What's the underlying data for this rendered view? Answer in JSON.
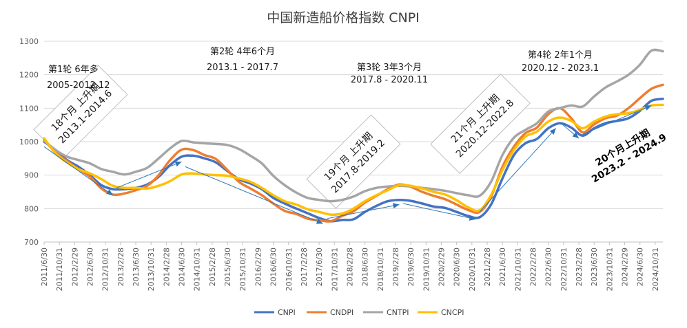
{
  "chart_data": {
    "type": "line",
    "title": "中国新造船价格指数 CNPI",
    "ylim": [
      700,
      1300
    ],
    "yticks": [
      700,
      800,
      900,
      1000,
      1100,
      1200,
      1300
    ],
    "grid": true,
    "legend_position": "bottom",
    "x_tick_labels": [
      "2011/6/30",
      "2011/10/31",
      "2012/2/29",
      "2012/6/30",
      "2012/10/31",
      "2013/2/28",
      "2013/6/30",
      "2013/10/31",
      "2014/2/28",
      "2014/6/30",
      "2014/10/31",
      "2015/2/28",
      "2015/6/30",
      "2015/10/31",
      "2016/2/29",
      "2016/6/30",
      "2016/10/31",
      "2017/2/28",
      "2017/6/30",
      "2017/10/31",
      "2018/2/28",
      "2018/6/30",
      "2018/10/31",
      "2019/2/28",
      "2019/6/30",
      "2019/10/31",
      "2020/2/29",
      "2020/6/30",
      "2020/10/31",
      "2021/2/28",
      "2021/6/30",
      "2021/10/31",
      "2022/2/28",
      "2022/6/30",
      "2022/10/31",
      "2023/2/28",
      "2023/6/30",
      "2023/10/31",
      "2024/2/29",
      "2024/6/30",
      "2024/10/31"
    ],
    "x_start": "2011-06",
    "x_end": "2024-12",
    "series": [
      {
        "name": "CNPI",
        "color": "#4472C4",
        "points": [
          [
            "2011-06",
            1000
          ],
          [
            "2011-09",
            975
          ],
          [
            "2011-12",
            945
          ],
          [
            "2012-03",
            925
          ],
          [
            "2012-06",
            900
          ],
          [
            "2012-09",
            870
          ],
          [
            "2012-12",
            858
          ],
          [
            "2013-03",
            858
          ],
          [
            "2013-06",
            862
          ],
          [
            "2013-09",
            872
          ],
          [
            "2013-12",
            895
          ],
          [
            "2014-03",
            930
          ],
          [
            "2014-06",
            955
          ],
          [
            "2014-09",
            958
          ],
          [
            "2014-12",
            950
          ],
          [
            "2015-03",
            938
          ],
          [
            "2015-06",
            912
          ],
          [
            "2015-09",
            888
          ],
          [
            "2015-12",
            875
          ],
          [
            "2016-03",
            858
          ],
          [
            "2016-06",
            832
          ],
          [
            "2016-09",
            815
          ],
          [
            "2016-12",
            800
          ],
          [
            "2017-03",
            786
          ],
          [
            "2017-06",
            772
          ],
          [
            "2017-09",
            762
          ],
          [
            "2017-12",
            766
          ],
          [
            "2018-03",
            768
          ],
          [
            "2018-06",
            790
          ],
          [
            "2018-09",
            808
          ],
          [
            "2018-12",
            822
          ],
          [
            "2019-03",
            826
          ],
          [
            "2019-06",
            823
          ],
          [
            "2019-09",
            815
          ],
          [
            "2019-12",
            806
          ],
          [
            "2020-03",
            802
          ],
          [
            "2020-06",
            790
          ],
          [
            "2020-09",
            778
          ],
          [
            "2020-12",
            774
          ],
          [
            "2021-03",
            812
          ],
          [
            "2021-06",
            890
          ],
          [
            "2021-09",
            960
          ],
          [
            "2021-12",
            995
          ],
          [
            "2022-03",
            1008
          ],
          [
            "2022-06",
            1040
          ],
          [
            "2022-09",
            1055
          ],
          [
            "2022-12",
            1042
          ],
          [
            "2023-03",
            1018
          ],
          [
            "2023-06",
            1040
          ],
          [
            "2023-09",
            1055
          ],
          [
            "2023-12",
            1062
          ],
          [
            "2024-03",
            1070
          ],
          [
            "2024-06",
            1092
          ],
          [
            "2024-09",
            1122
          ],
          [
            "2024-12",
            1128
          ]
        ]
      },
      {
        "name": "CNDPI",
        "color": "#ED7D31",
        "points": [
          [
            "2011-06",
            1005
          ],
          [
            "2011-09",
            968
          ],
          [
            "2011-12",
            942
          ],
          [
            "2012-03",
            918
          ],
          [
            "2012-06",
            895
          ],
          [
            "2012-09",
            860
          ],
          [
            "2012-12",
            842
          ],
          [
            "2013-03",
            845
          ],
          [
            "2013-06",
            855
          ],
          [
            "2013-09",
            868
          ],
          [
            "2013-12",
            900
          ],
          [
            "2014-03",
            945
          ],
          [
            "2014-06",
            976
          ],
          [
            "2014-09",
            975
          ],
          [
            "2014-12",
            960
          ],
          [
            "2015-03",
            948
          ],
          [
            "2015-06",
            915
          ],
          [
            "2015-09",
            880
          ],
          [
            "2015-12",
            860
          ],
          [
            "2016-03",
            840
          ],
          [
            "2016-06",
            815
          ],
          [
            "2016-09",
            793
          ],
          [
            "2016-12",
            784
          ],
          [
            "2017-03",
            770
          ],
          [
            "2017-06",
            765
          ],
          [
            "2017-09",
            762
          ],
          [
            "2017-12",
            778
          ],
          [
            "2018-03",
            792
          ],
          [
            "2018-06",
            818
          ],
          [
            "2018-09",
            838
          ],
          [
            "2018-12",
            858
          ],
          [
            "2019-03",
            872
          ],
          [
            "2019-06",
            865
          ],
          [
            "2019-09",
            850
          ],
          [
            "2019-12",
            838
          ],
          [
            "2020-03",
            828
          ],
          [
            "2020-06",
            812
          ],
          [
            "2020-09",
            796
          ],
          [
            "2020-12",
            790
          ],
          [
            "2021-03",
            835
          ],
          [
            "2021-06",
            925
          ],
          [
            "2021-09",
            985
          ],
          [
            "2021-12",
            1025
          ],
          [
            "2022-03",
            1042
          ],
          [
            "2022-06",
            1082
          ],
          [
            "2022-09",
            1100
          ],
          [
            "2022-12",
            1070
          ],
          [
            "2023-03",
            1028
          ],
          [
            "2023-06",
            1052
          ],
          [
            "2023-09",
            1070
          ],
          [
            "2023-12",
            1078
          ],
          [
            "2024-03",
            1100
          ],
          [
            "2024-06",
            1130
          ],
          [
            "2024-09",
            1158
          ],
          [
            "2024-12",
            1170
          ]
        ]
      },
      {
        "name": "CNTPI",
        "color": "#A5A5A5",
        "points": [
          [
            "2011-06",
            1003
          ],
          [
            "2011-09",
            975
          ],
          [
            "2011-12",
            955
          ],
          [
            "2012-03",
            945
          ],
          [
            "2012-06",
            935
          ],
          [
            "2012-09",
            918
          ],
          [
            "2012-12",
            910
          ],
          [
            "2013-03",
            902
          ],
          [
            "2013-06",
            910
          ],
          [
            "2013-09",
            922
          ],
          [
            "2013-12",
            950
          ],
          [
            "2014-03",
            980
          ],
          [
            "2014-06",
            1002
          ],
          [
            "2014-09",
            998
          ],
          [
            "2014-12",
            995
          ],
          [
            "2015-03",
            993
          ],
          [
            "2015-06",
            990
          ],
          [
            "2015-09",
            978
          ],
          [
            "2015-12",
            958
          ],
          [
            "2016-03",
            935
          ],
          [
            "2016-06",
            898
          ],
          [
            "2016-09",
            870
          ],
          [
            "2016-12",
            848
          ],
          [
            "2017-03",
            832
          ],
          [
            "2017-06",
            826
          ],
          [
            "2017-09",
            822
          ],
          [
            "2017-12",
            826
          ],
          [
            "2018-03",
            836
          ],
          [
            "2018-06",
            852
          ],
          [
            "2018-09",
            862
          ],
          [
            "2018-12",
            866
          ],
          [
            "2019-03",
            868
          ],
          [
            "2019-06",
            866
          ],
          [
            "2019-09",
            862
          ],
          [
            "2019-12",
            858
          ],
          [
            "2020-03",
            853
          ],
          [
            "2020-06",
            846
          ],
          [
            "2020-09",
            840
          ],
          [
            "2020-12",
            838
          ],
          [
            "2021-03",
            880
          ],
          [
            "2021-06",
            960
          ],
          [
            "2021-09",
            1012
          ],
          [
            "2021-12",
            1035
          ],
          [
            "2022-03",
            1055
          ],
          [
            "2022-06",
            1090
          ],
          [
            "2022-09",
            1100
          ],
          [
            "2022-12",
            1108
          ],
          [
            "2023-03",
            1105
          ],
          [
            "2023-06",
            1135
          ],
          [
            "2023-09",
            1162
          ],
          [
            "2023-12",
            1180
          ],
          [
            "2024-03",
            1200
          ],
          [
            "2024-06",
            1230
          ],
          [
            "2024-09",
            1272
          ],
          [
            "2024-12",
            1270
          ]
        ]
      },
      {
        "name": "CNCPI",
        "color": "#FFC000",
        "points": [
          [
            "2011-06",
            1010
          ],
          [
            "2011-09",
            965
          ],
          [
            "2011-12",
            938
          ],
          [
            "2012-03",
            918
          ],
          [
            "2012-06",
            905
          ],
          [
            "2012-09",
            888
          ],
          [
            "2012-12",
            868
          ],
          [
            "2013-03",
            862
          ],
          [
            "2013-06",
            862
          ],
          [
            "2013-09",
            860
          ],
          [
            "2013-12",
            868
          ],
          [
            "2014-03",
            882
          ],
          [
            "2014-06",
            902
          ],
          [
            "2014-09",
            905
          ],
          [
            "2014-12",
            902
          ],
          [
            "2015-03",
            900
          ],
          [
            "2015-06",
            898
          ],
          [
            "2015-09",
            890
          ],
          [
            "2015-12",
            880
          ],
          [
            "2016-03",
            862
          ],
          [
            "2016-06",
            840
          ],
          [
            "2016-09",
            822
          ],
          [
            "2016-12",
            812
          ],
          [
            "2017-03",
            798
          ],
          [
            "2017-06",
            790
          ],
          [
            "2017-09",
            782
          ],
          [
            "2017-12",
            785
          ],
          [
            "2018-03",
            800
          ],
          [
            "2018-06",
            822
          ],
          [
            "2018-09",
            840
          ],
          [
            "2018-12",
            855
          ],
          [
            "2019-03",
            870
          ],
          [
            "2019-06",
            868
          ],
          [
            "2019-09",
            860
          ],
          [
            "2019-12",
            850
          ],
          [
            "2020-03",
            842
          ],
          [
            "2020-06",
            825
          ],
          [
            "2020-09",
            804
          ],
          [
            "2020-12",
            795
          ],
          [
            "2021-03",
            840
          ],
          [
            "2021-06",
            915
          ],
          [
            "2021-09",
            975
          ],
          [
            "2021-12",
            1015
          ],
          [
            "2022-03",
            1030
          ],
          [
            "2022-06",
            1060
          ],
          [
            "2022-09",
            1072
          ],
          [
            "2022-12",
            1062
          ],
          [
            "2023-03",
            1040
          ],
          [
            "2023-06",
            1060
          ],
          [
            "2023-09",
            1075
          ],
          [
            "2023-12",
            1082
          ],
          [
            "2024-03",
            1085
          ],
          [
            "2024-06",
            1095
          ],
          [
            "2024-09",
            1108
          ],
          [
            "2024-12",
            1110
          ]
        ]
      }
    ],
    "annotations": {
      "round1": {
        "line1": "第1轮 6年多",
        "line2": "2005-2012.12"
      },
      "round2": {
        "line1": "第2轮 4年6个月",
        "line2": "2013.1 - 2017.7"
      },
      "round3": {
        "line1": "第3轮 3年3个月",
        "line2": "2017.8 - 2020.11"
      },
      "round4": {
        "line1": "第4轮 2年1个月",
        "line2": "2020.12 - 2023.1"
      },
      "box1": {
        "line1": "18个月 上升期",
        "line2": "2013.1-2014.6"
      },
      "box2": {
        "line1": "19个月 上升期",
        "line2": "2017.8-2019.2"
      },
      "box3": {
        "line1": "21个月 上升期",
        "line2": "2020.12-2022.8"
      },
      "rise4": {
        "line1": "20个月上升期",
        "line2": "2023.2 - 2024.9"
      }
    },
    "trend_arrows": [
      [
        [
          "2011-06",
          985
        ],
        [
          "2012-12",
          840
        ]
      ],
      [
        [
          "2013-01",
          862
        ],
        [
          "2014-06",
          940
        ]
      ],
      [
        [
          "2014-07",
          925
        ],
        [
          "2017-07",
          755
        ]
      ],
      [
        [
          "2017-08",
          770
        ],
        [
          "2019-03",
          812
        ]
      ],
      [
        [
          "2019-04",
          815
        ],
        [
          "2020-11",
          768
        ]
      ],
      [
        [
          "2020-12",
          790
        ],
        [
          "2022-08",
          1040
        ]
      ],
      [
        [
          "2022-09",
          1058
        ],
        [
          "2023-02",
          1010
        ]
      ],
      [
        [
          "2023-03",
          1022
        ],
        [
          "2024-09",
          1108
        ]
      ]
    ],
    "trend_arrow_color": "#2E75B6"
  }
}
